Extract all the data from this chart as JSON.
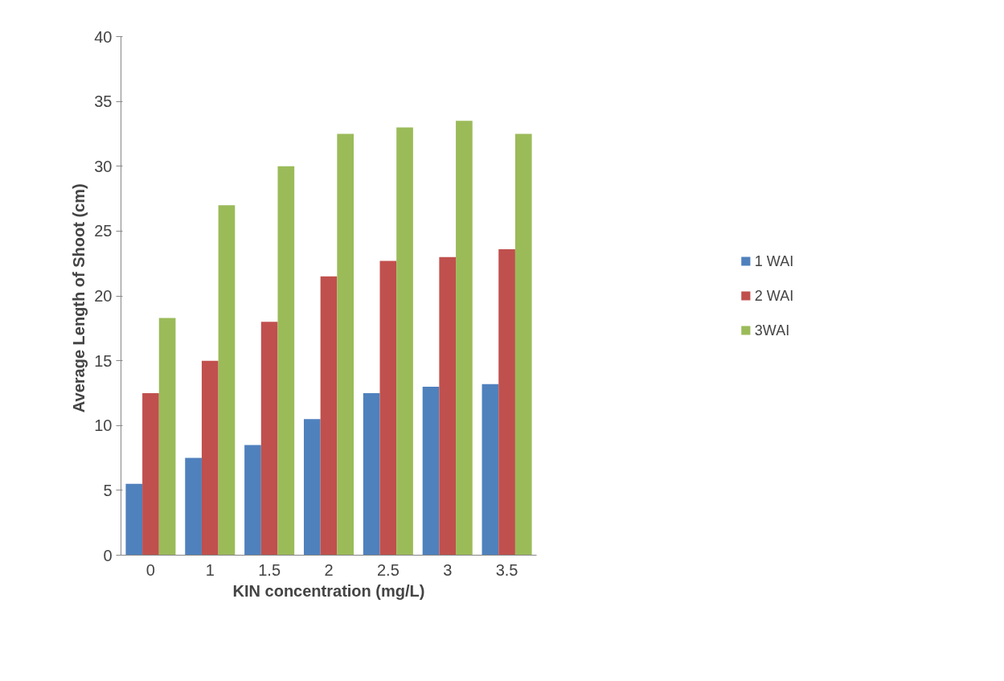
{
  "chart_data": {
    "type": "bar",
    "xlabel": "KIN concentration (mg/L)",
    "ylabel": "Average Length of  Shoot (cm)",
    "categories": [
      "0",
      "1",
      "1.5",
      "2",
      "2.5",
      "3",
      "3.5"
    ],
    "series": [
      {
        "name": "1 WAI",
        "color": "#4f81bd",
        "values": [
          5.5,
          7.5,
          8.5,
          10.5,
          12.5,
          13.0,
          13.2
        ]
      },
      {
        "name": "2 WAI",
        "color": "#c0504d",
        "values": [
          12.5,
          15.0,
          18.0,
          21.5,
          22.7,
          23.0,
          23.6
        ]
      },
      {
        "name": "3WAI",
        "color": "#9bbb59",
        "values": [
          18.3,
          27.0,
          30.0,
          32.5,
          33.0,
          33.5,
          32.5
        ]
      }
    ],
    "ylim": [
      0,
      40
    ],
    "yticks": [
      0,
      5,
      10,
      15,
      20,
      25,
      30,
      35,
      40
    ],
    "legend": "right"
  }
}
